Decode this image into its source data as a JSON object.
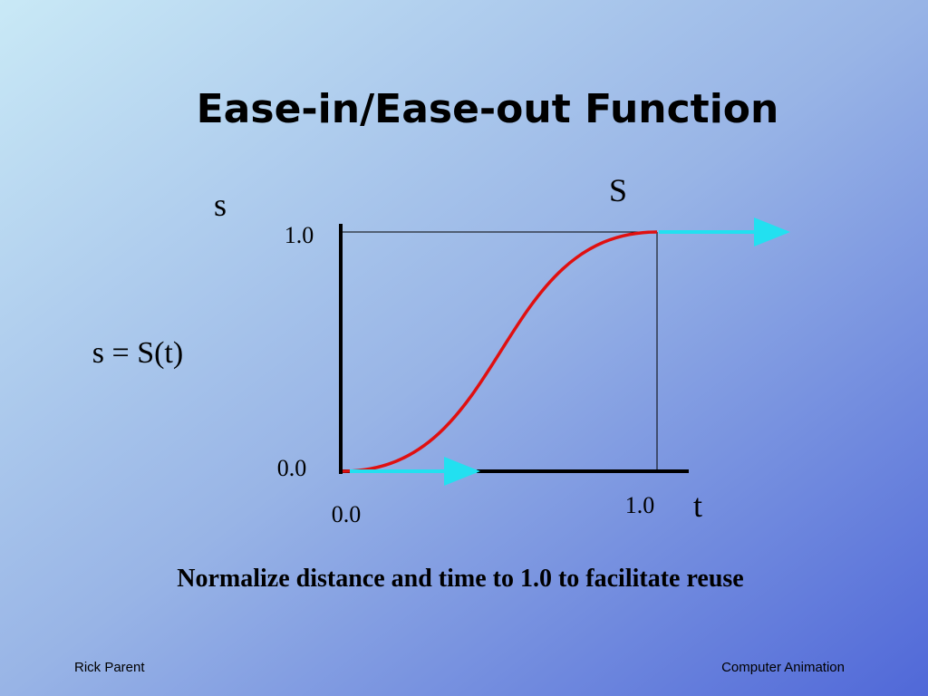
{
  "title": "Ease-in/Ease-out Function",
  "diagram": {
    "curve_name": "S",
    "y_axis": "s",
    "y_max": "1.0",
    "y_min": "0.0",
    "equation": "s = S(t)",
    "x_min": "0.0",
    "x_max": "1.0",
    "x_axis": "t"
  },
  "caption": "Normalize distance and time to 1.0 to facilitate reuse",
  "footer": {
    "left": "Rick Parent",
    "right": "Computer Animation"
  }
}
